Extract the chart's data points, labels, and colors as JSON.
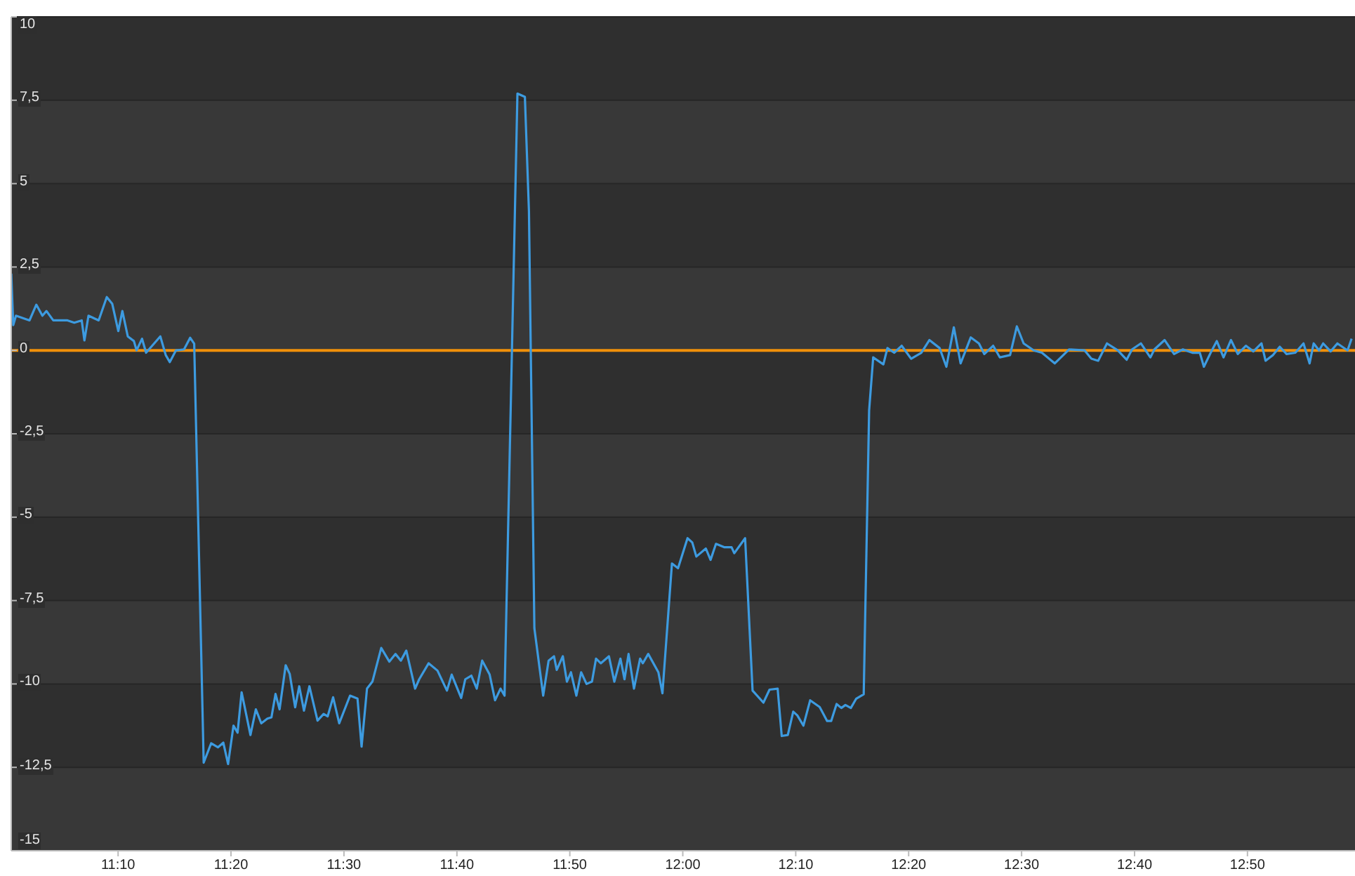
{
  "chart_data": {
    "type": "line",
    "xlim": [
      11.009,
      12.992
    ],
    "ylim": [
      -15,
      10
    ],
    "xticks": [
      {
        "value": 11.1667,
        "label": "11:10"
      },
      {
        "value": 11.3333,
        "label": "11:20"
      },
      {
        "value": 11.5,
        "label": "11:30"
      },
      {
        "value": 11.6667,
        "label": "11:40"
      },
      {
        "value": 11.8333,
        "label": "11:50"
      },
      {
        "value": 12,
        "label": "12:00"
      },
      {
        "value": 12.1667,
        "label": "12:10"
      },
      {
        "value": 12.3333,
        "label": "12:20"
      },
      {
        "value": 12.5,
        "label": "12:30"
      },
      {
        "value": 12.6667,
        "label": "12:40"
      },
      {
        "value": 12.8333,
        "label": "12:50"
      }
    ],
    "yticks": [
      -15,
      {
        "value": -12.5,
        "label": "-12,5"
      },
      -10,
      {
        "value": -7.5,
        "label": "-7,5"
      },
      -5,
      {
        "value": -2.5,
        "label": "-2,5"
      },
      0,
      {
        "value": 2.5,
        "label": "2,5"
      },
      5,
      {
        "value": 7.5,
        "label": "7,5"
      },
      10
    ],
    "grid": "y",
    "marker": "none",
    "line_style": "solid",
    "ref_lines": [
      {
        "axis": "y",
        "value": 0,
        "color": "#f0900a"
      }
    ],
    "series": [
      {
        "color": "#3d9be0",
        "x": [
          11.009,
          11.012,
          11.016,
          11.036,
          11.046,
          11.055,
          11.061,
          11.071,
          11.092,
          11.102,
          11.113,
          11.117,
          11.123,
          11.138,
          11.15,
          11.158,
          11.167,
          11.173,
          11.181,
          11.19,
          11.194,
          11.202,
          11.208,
          11.229,
          11.237,
          11.243,
          11.252,
          11.264,
          11.273,
          11.279,
          11.293,
          11.304,
          11.314,
          11.322,
          11.329,
          11.337,
          11.343,
          11.349,
          11.362,
          11.37,
          11.378,
          11.387,
          11.393,
          11.399,
          11.405,
          11.414,
          11.42,
          11.428,
          11.434,
          11.441,
          11.449,
          11.461,
          11.47,
          11.476,
          11.484,
          11.493,
          11.509,
          11.52,
          11.526,
          11.534,
          11.542,
          11.555,
          11.567,
          11.576,
          11.584,
          11.592,
          11.605,
          11.611,
          11.625,
          11.638,
          11.652,
          11.659,
          11.673,
          11.679,
          11.688,
          11.696,
          11.704,
          11.715,
          11.723,
          11.731,
          11.737,
          11.756,
          11.767,
          11.773,
          11.781,
          11.794,
          11.802,
          11.81,
          11.814,
          11.823,
          11.829,
          11.835,
          11.843,
          11.85,
          11.858,
          11.866,
          11.872,
          11.879,
          11.891,
          11.899,
          11.908,
          11.914,
          11.92,
          11.928,
          11.937,
          11.941,
          11.949,
          11.964,
          11.97,
          11.984,
          11.993,
          12.007,
          12.014,
          12.02,
          12.034,
          12.041,
          12.049,
          12.061,
          12.072,
          12.076,
          12.092,
          12.103,
          12.119,
          12.128,
          12.14,
          12.146,
          12.155,
          12.163,
          12.169,
          12.178,
          12.188,
          12.202,
          12.213,
          12.219,
          12.227,
          12.234,
          12.24,
          12.248,
          12.256,
          12.267,
          12.275,
          12.281,
          12.296,
          12.302,
          12.312,
          12.323,
          12.337,
          12.352,
          12.364,
          12.379,
          12.389,
          12.4,
          12.41,
          12.425,
          12.437,
          12.445,
          12.458,
          12.468,
          12.483,
          12.493,
          12.503,
          12.518,
          12.53,
          12.549,
          12.57,
          12.593,
          12.603,
          12.613,
          12.626,
          12.642,
          12.655,
          12.663,
          12.676,
          12.69,
          12.696,
          12.711,
          12.725,
          12.738,
          12.752,
          12.763,
          12.769,
          12.779,
          12.788,
          12.798,
          12.809,
          12.819,
          12.831,
          12.842,
          12.854,
          12.86,
          12.871,
          12.881,
          12.891,
          12.904,
          12.916,
          12.925,
          12.931,
          12.939,
          12.945,
          12.956,
          12.966,
          12.981,
          12.987
        ],
        "values": [
          2.3,
          0.76,
          1.04,
          0.9,
          1.37,
          1.04,
          1.18,
          0.9,
          0.9,
          0.83,
          0.9,
          0.3,
          1.04,
          0.9,
          1.6,
          1.4,
          0.58,
          1.18,
          0.42,
          0.28,
          0,
          0.35,
          -0.07,
          0.42,
          -0.14,
          -0.35,
          0,
          0.03,
          0.38,
          0.2,
          -12.36,
          -11.78,
          -11.9,
          -11.76,
          -12.4,
          -11.25,
          -11.46,
          -10.25,
          -11.53,
          -10.76,
          -11.18,
          -11.04,
          -11,
          -10.3,
          -10.76,
          -9.44,
          -9.7,
          -10.7,
          -10.07,
          -10.8,
          -10.07,
          -11.1,
          -10.9,
          -10.97,
          -10.4,
          -11.18,
          -10.35,
          -10.44,
          -11.88,
          -10.14,
          -9.93,
          -8.92,
          -9.33,
          -9.1,
          -9.3,
          -9,
          -10.14,
          -9.86,
          -9.38,
          -9.6,
          -10.2,
          -9.72,
          -10.42,
          -9.86,
          -9.75,
          -10.14,
          -9.3,
          -9.72,
          -10.49,
          -10.14,
          -10.35,
          7.7,
          7.6,
          4.17,
          -8.33,
          -10.35,
          -9.3,
          -9.17,
          -9.58,
          -9.17,
          -9.93,
          -9.65,
          -10.35,
          -9.65,
          -10,
          -9.93,
          -9.24,
          -9.38,
          -9.17,
          -9.93,
          -9.24,
          -9.86,
          -9.1,
          -10.14,
          -9.24,
          -9.38,
          -9.1,
          -9.65,
          -10.28,
          -6.39,
          -6.53,
          -5.63,
          -5.76,
          -6.18,
          -5.94,
          -6.28,
          -5.8,
          -5.9,
          -5.9,
          -6.08,
          -5.63,
          -10.2,
          -10.56,
          -10.17,
          -10.14,
          -11.56,
          -11.53,
          -10.83,
          -10.94,
          -11.25,
          -10.49,
          -10.69,
          -11.11,
          -11.11,
          -10.6,
          -10.72,
          -10.63,
          -10.72,
          -10.44,
          -10.31,
          -1.8,
          -0.21,
          -0.42,
          0.07,
          -0.07,
          0.14,
          -0.25,
          -0.07,
          0.31,
          0.07,
          -0.49,
          0.69,
          -0.39,
          0.39,
          0.21,
          -0.11,
          0.14,
          -0.21,
          -0.14,
          0.72,
          0.21,
          0,
          -0.07,
          -0.39,
          0.03,
          0,
          -0.25,
          -0.31,
          0.21,
          0,
          -0.28,
          0.03,
          0.21,
          -0.21,
          0.03,
          0.31,
          -0.11,
          0.03,
          -0.07,
          -0.07,
          -0.49,
          -0.07,
          0.28,
          -0.21,
          0.31,
          -0.11,
          0.14,
          -0.03,
          0.21,
          -0.31,
          -0.14,
          0.11,
          -0.11,
          -0.07,
          0.21,
          -0.39,
          0.21,
          0,
          0.21,
          -0.03,
          0.21,
          0,
          0.35
        ]
      }
    ]
  }
}
